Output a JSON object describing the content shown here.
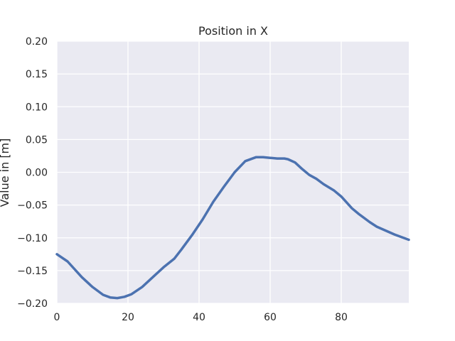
{
  "chart_data": {
    "type": "line",
    "title": "Position in X",
    "xlabel": "",
    "ylabel": "Value in [m]",
    "xlim": [
      0,
      99
    ],
    "ylim": [
      -0.2,
      0.2
    ],
    "grid": true,
    "x_ticks": [
      0,
      20,
      40,
      60,
      80
    ],
    "x_tick_labels": [
      "0",
      "20",
      "40",
      "60",
      "80"
    ],
    "y_ticks": [
      -0.2,
      -0.15,
      -0.1,
      -0.05,
      0.0,
      0.05,
      0.1,
      0.15,
      0.2
    ],
    "y_tick_labels": [
      "−0.20",
      "−0.15",
      "−0.10",
      "−0.05",
      "0.00",
      "0.05",
      "0.10",
      "0.15",
      "0.20"
    ],
    "colors": {
      "background": "#EAEAF2",
      "grid": "#FFFFFF",
      "line": "#4C72B0"
    },
    "series": [
      {
        "x": [
          0,
          3,
          5,
          7,
          10,
          13,
          15,
          17,
          19,
          21,
          24,
          27,
          30,
          33,
          35,
          38,
          41,
          44,
          47,
          50,
          53,
          56,
          58,
          60,
          62,
          64,
          65,
          67,
          69,
          71,
          73,
          75,
          78,
          80,
          83,
          85,
          88,
          90,
          95,
          99
        ],
        "y": [
          -0.125,
          -0.136,
          -0.148,
          -0.16,
          -0.175,
          -0.187,
          -0.191,
          -0.192,
          -0.19,
          -0.186,
          -0.175,
          -0.16,
          -0.145,
          -0.132,
          -0.118,
          -0.096,
          -0.072,
          -0.045,
          -0.022,
          0.0,
          0.017,
          0.023,
          0.023,
          0.022,
          0.021,
          0.021,
          0.02,
          0.015,
          0.005,
          -0.004,
          -0.01,
          -0.018,
          -0.028,
          -0.037,
          -0.055,
          -0.064,
          -0.076,
          -0.083,
          -0.095,
          -0.103
        ]
      }
    ]
  }
}
